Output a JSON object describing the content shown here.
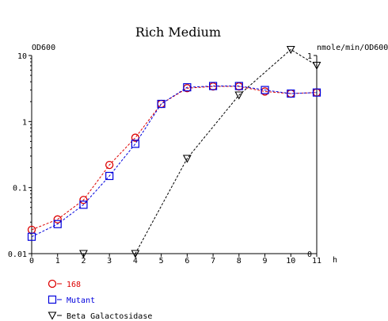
{
  "chart_data": {
    "type": "line",
    "title": "Rich Medium",
    "y_left_label": "OD600",
    "y_right_label": "nmole/min/OD600",
    "x_unit": "h",
    "x_ticks": [
      "0",
      "1",
      "2",
      "3",
      "4",
      "5",
      "6",
      "7",
      "8",
      "9",
      "10",
      "11"
    ],
    "x_range": [
      0,
      11
    ],
    "y_left_scale": "log",
    "y_left_range": [
      0.01,
      10
    ],
    "y_left_ticks": [
      "10",
      "1",
      "0.1",
      "0.01"
    ],
    "y_right_range": [
      0,
      1
    ],
    "y_right_ticks": [
      "1",
      "0"
    ],
    "grid": false,
    "legend_position": "bottom-left",
    "series": [
      {
        "name": "168",
        "axis": "left",
        "color": "#dd0000",
        "marker": "circle",
        "x": [
          0,
          1,
          2,
          3,
          4,
          5,
          6,
          7,
          8,
          9,
          10,
          11
        ],
        "y": [
          0.023,
          0.033,
          0.065,
          0.22,
          0.57,
          1.85,
          3.2,
          3.4,
          3.4,
          2.85,
          2.65,
          2.75
        ]
      },
      {
        "name": "Mutant",
        "axis": "left",
        "color": "#0000dd",
        "marker": "square",
        "x": [
          0,
          1,
          2,
          3,
          4,
          5,
          6,
          7,
          8,
          9,
          10,
          11
        ],
        "y": [
          0.018,
          0.028,
          0.055,
          0.15,
          0.46,
          1.85,
          3.3,
          3.45,
          3.45,
          3.0,
          2.65,
          2.75
        ]
      },
      {
        "name": "Beta Galactosidase",
        "axis": "right",
        "color": "#000000",
        "marker": "triangle-down",
        "x": [
          2,
          4,
          6,
          8,
          10,
          11
        ],
        "y": [
          0.0,
          0.0,
          0.48,
          0.8,
          1.03,
          0.95
        ]
      }
    ]
  }
}
